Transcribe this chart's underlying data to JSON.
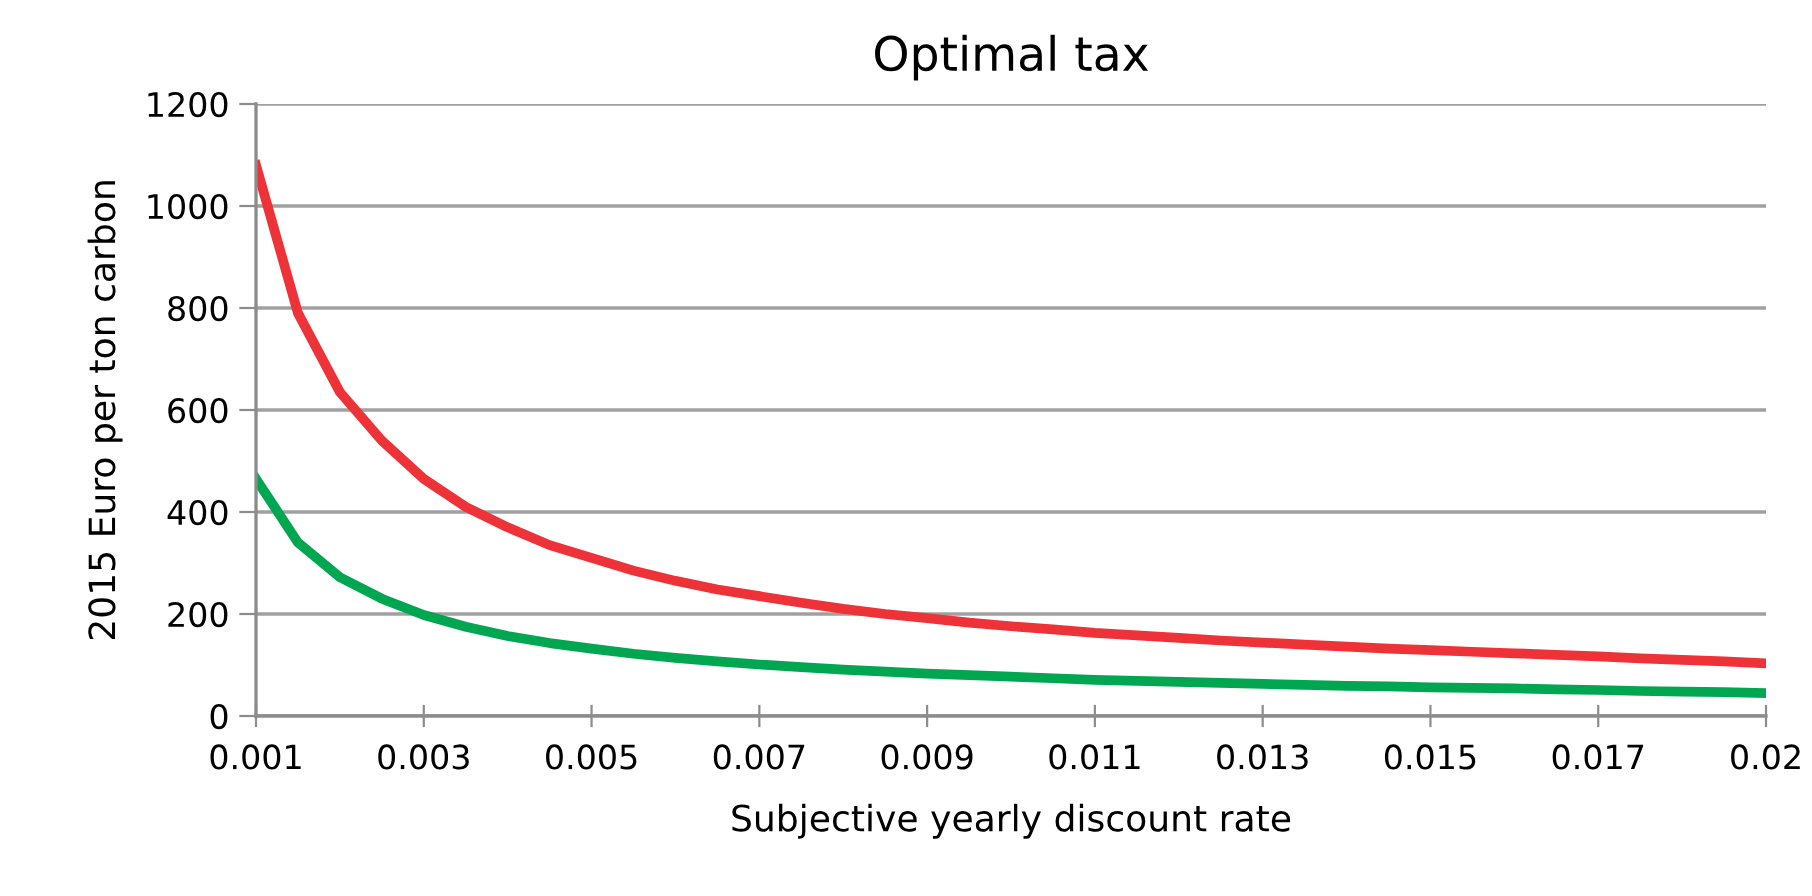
{
  "chart_data": {
    "type": "line",
    "title": "Optimal tax",
    "xlabel": "Subjective yearly discount rate",
    "ylabel": "2015 Euro per ton carbon",
    "categories": [
      "0.001",
      null,
      null,
      null,
      "0.003",
      null,
      null,
      null,
      "0.005",
      null,
      null,
      null,
      "0.007",
      null,
      null,
      null,
      "0.009",
      null,
      null,
      null,
      "0.011",
      null,
      null,
      null,
      "0.013",
      null,
      null,
      null,
      "0.015",
      null,
      null,
      null,
      "0.017",
      null,
      null,
      null,
      "0.02"
    ],
    "series": [
      {
        "color": "#ee3338",
        "values": [
          1080,
          790,
          635,
          540,
          465,
          410,
          370,
          335,
          310,
          285,
          265,
          248,
          235,
          222,
          210,
          200,
          192,
          183,
          176,
          170,
          163,
          158,
          153,
          148,
          144,
          140,
          136,
          132,
          129,
          126,
          123,
          120,
          117,
          113,
          110,
          107,
          103
        ]
      },
      {
        "color": "#00a650",
        "values": [
          465,
          340,
          272,
          230,
          198,
          175,
          157,
          143,
          132,
          122,
          114,
          107,
          101,
          96,
          91,
          87,
          83,
          80,
          77,
          74,
          71,
          69,
          67,
          65,
          63,
          61,
          59,
          58,
          56,
          55,
          54,
          52,
          51,
          49,
          48,
          47,
          45
        ]
      }
    ],
    "ylim": [
      0,
      1200
    ],
    "yticks": [
      0,
      200,
      400,
      600,
      800,
      1000,
      1200
    ],
    "grid": "y",
    "marker": "none",
    "line_style": "solid",
    "legend": false
  }
}
